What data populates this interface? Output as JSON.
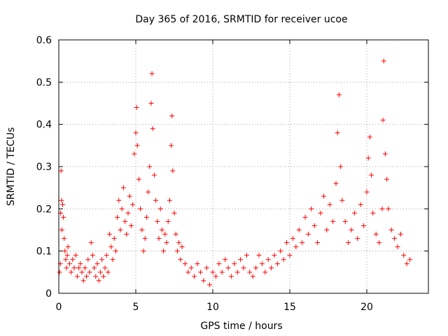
{
  "chart_data": {
    "type": "scatter",
    "title": "Day 365 of 2016, SRMTID for receiver ucoe",
    "xlabel": "GPS time / hours",
    "ylabel": "SRMTID / TECUs",
    "xlim": [
      0,
      24
    ],
    "ylim": [
      0,
      0.6
    ],
    "xticks": [
      0,
      5,
      10,
      15,
      20
    ],
    "xtick_labels": [
      "0",
      "5",
      "10",
      "15",
      "20"
    ],
    "yticks": [
      0,
      0.1,
      0.2,
      0.3,
      0.4,
      0.5,
      0.6
    ],
    "ytick_labels": [
      "0",
      "0.1",
      "0.2",
      "0.3",
      "0.4",
      "0.5",
      "0.6"
    ],
    "grid": true,
    "marker": "+",
    "color": "#ff0000",
    "series": [
      {
        "name": "SRMTID",
        "points": [
          [
            0.05,
            0.05
          ],
          [
            0.1,
            0.07
          ],
          [
            0.12,
            0.19
          ],
          [
            0.15,
            0.29
          ],
          [
            0.18,
            0.22
          ],
          [
            0.2,
            0.15
          ],
          [
            0.25,
            0.21
          ],
          [
            0.3,
            0.18
          ],
          [
            0.35,
            0.13
          ],
          [
            0.4,
            0.1
          ],
          [
            0.45,
            0.08
          ],
          [
            0.5,
            0.06
          ],
          [
            0.55,
            0.09
          ],
          [
            0.6,
            0.11
          ],
          [
            0.7,
            0.07
          ],
          [
            0.8,
            0.05
          ],
          [
            0.9,
            0.08
          ],
          [
            1.0,
            0.06
          ],
          [
            1.1,
            0.09
          ],
          [
            1.2,
            0.04
          ],
          [
            1.3,
            0.06
          ],
          [
            1.4,
            0.07
          ],
          [
            1.5,
            0.05
          ],
          [
            1.6,
            0.03
          ],
          [
            1.7,
            0.06
          ],
          [
            1.8,
            0.04
          ],
          [
            1.9,
            0.08
          ],
          [
            2.0,
            0.05
          ],
          [
            2.1,
            0.12
          ],
          [
            2.2,
            0.09
          ],
          [
            2.3,
            0.06
          ],
          [
            2.4,
            0.04
          ],
          [
            2.5,
            0.07
          ],
          [
            2.6,
            0.03
          ],
          [
            2.7,
            0.05
          ],
          [
            2.8,
            0.08
          ],
          [
            2.9,
            0.04
          ],
          [
            3.0,
            0.06
          ],
          [
            3.1,
            0.09
          ],
          [
            3.2,
            0.05
          ],
          [
            3.3,
            0.14
          ],
          [
            3.4,
            0.11
          ],
          [
            3.5,
            0.08
          ],
          [
            3.6,
            0.13
          ],
          [
            3.7,
            0.1
          ],
          [
            3.8,
            0.18
          ],
          [
            3.9,
            0.22
          ],
          [
            4.0,
            0.15
          ],
          [
            4.1,
            0.2
          ],
          [
            4.2,
            0.25
          ],
          [
            4.3,
            0.17
          ],
          [
            4.4,
            0.14
          ],
          [
            4.5,
            0.19
          ],
          [
            4.6,
            0.23
          ],
          [
            4.7,
            0.16
          ],
          [
            4.8,
            0.21
          ],
          [
            4.9,
            0.33
          ],
          [
            5.0,
            0.38
          ],
          [
            5.05,
            0.44
          ],
          [
            5.1,
            0.35
          ],
          [
            5.2,
            0.27
          ],
          [
            5.3,
            0.2
          ],
          [
            5.4,
            0.15
          ],
          [
            5.5,
            0.1
          ],
          [
            5.6,
            0.13
          ],
          [
            5.7,
            0.18
          ],
          [
            5.8,
            0.24
          ],
          [
            5.9,
            0.3
          ],
          [
            6.0,
            0.45
          ],
          [
            6.05,
            0.52
          ],
          [
            6.1,
            0.39
          ],
          [
            6.2,
            0.28
          ],
          [
            6.3,
            0.22
          ],
          [
            6.4,
            0.17
          ],
          [
            6.5,
            0.13
          ],
          [
            6.6,
            0.2
          ],
          [
            6.7,
            0.15
          ],
          [
            6.8,
            0.1
          ],
          [
            6.9,
            0.14
          ],
          [
            7.0,
            0.12
          ],
          [
            7.1,
            0.17
          ],
          [
            7.2,
            0.22
          ],
          [
            7.3,
            0.35
          ],
          [
            7.35,
            0.42
          ],
          [
            7.4,
            0.29
          ],
          [
            7.5,
            0.19
          ],
          [
            7.6,
            0.14
          ],
          [
            7.7,
            0.1
          ],
          [
            7.8,
            0.12
          ],
          [
            7.9,
            0.08
          ],
          [
            8.0,
            0.11
          ],
          [
            8.2,
            0.07
          ],
          [
            8.4,
            0.05
          ],
          [
            8.6,
            0.06
          ],
          [
            8.8,
            0.04
          ],
          [
            9.0,
            0.07
          ],
          [
            9.2,
            0.05
          ],
          [
            9.4,
            0.03
          ],
          [
            9.6,
            0.06
          ],
          [
            9.8,
            0.02
          ],
          [
            10.0,
            0.05
          ],
          [
            10.2,
            0.04
          ],
          [
            10.4,
            0.07
          ],
          [
            10.6,
            0.05
          ],
          [
            10.8,
            0.08
          ],
          [
            11.0,
            0.06
          ],
          [
            11.2,
            0.04
          ],
          [
            11.4,
            0.07
          ],
          [
            11.6,
            0.05
          ],
          [
            11.8,
            0.08
          ],
          [
            12.0,
            0.06
          ],
          [
            12.2,
            0.09
          ],
          [
            12.4,
            0.05
          ],
          [
            12.6,
            0.04
          ],
          [
            12.8,
            0.06
          ],
          [
            13.0,
            0.09
          ],
          [
            13.2,
            0.07
          ],
          [
            13.4,
            0.05
          ],
          [
            13.6,
            0.08
          ],
          [
            13.8,
            0.06
          ],
          [
            14.0,
            0.09
          ],
          [
            14.2,
            0.07
          ],
          [
            14.4,
            0.1
          ],
          [
            14.6,
            0.08
          ],
          [
            14.8,
            0.12
          ],
          [
            15.0,
            0.09
          ],
          [
            15.2,
            0.13
          ],
          [
            15.4,
            0.11
          ],
          [
            15.6,
            0.15
          ],
          [
            15.8,
            0.12
          ],
          [
            16.0,
            0.18
          ],
          [
            16.2,
            0.14
          ],
          [
            16.4,
            0.2
          ],
          [
            16.6,
            0.16
          ],
          [
            16.8,
            0.12
          ],
          [
            17.0,
            0.19
          ],
          [
            17.2,
            0.23
          ],
          [
            17.4,
            0.15
          ],
          [
            17.6,
            0.21
          ],
          [
            17.8,
            0.17
          ],
          [
            18.0,
            0.26
          ],
          [
            18.1,
            0.38
          ],
          [
            18.2,
            0.47
          ],
          [
            18.3,
            0.3
          ],
          [
            18.4,
            0.22
          ],
          [
            18.6,
            0.17
          ],
          [
            18.8,
            0.12
          ],
          [
            19.0,
            0.15
          ],
          [
            19.2,
            0.19
          ],
          [
            19.4,
            0.13
          ],
          [
            19.6,
            0.21
          ],
          [
            19.8,
            0.16
          ],
          [
            20.0,
            0.24
          ],
          [
            20.1,
            0.32
          ],
          [
            20.2,
            0.37
          ],
          [
            20.3,
            0.28
          ],
          [
            20.4,
            0.19
          ],
          [
            20.6,
            0.14
          ],
          [
            20.8,
            0.12
          ],
          [
            21.0,
            0.2
          ],
          [
            21.05,
            0.41
          ],
          [
            21.1,
            0.55
          ],
          [
            21.2,
            0.33
          ],
          [
            21.3,
            0.27
          ],
          [
            21.4,
            0.2
          ],
          [
            21.6,
            0.15
          ],
          [
            21.8,
            0.13
          ],
          [
            22.0,
            0.11
          ],
          [
            22.2,
            0.14
          ],
          [
            22.4,
            0.09
          ],
          [
            22.6,
            0.07
          ],
          [
            22.8,
            0.08
          ]
        ]
      }
    ]
  }
}
